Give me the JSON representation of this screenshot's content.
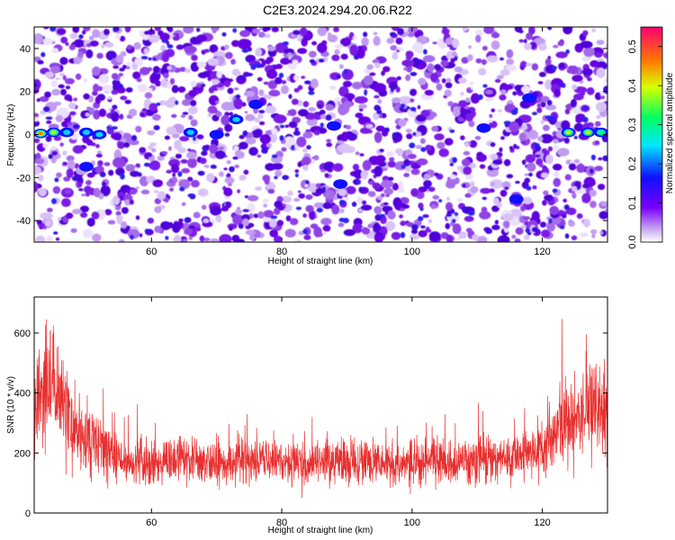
{
  "title": "C2E3.2024.294.20.06.R22",
  "chart_data": [
    {
      "type": "heatmap",
      "name": "spectrogram",
      "xlabel": "Height of straight line (km)",
      "ylabel": "Frequency (Hz)",
      "xlim": [
        42,
        130
      ],
      "ylim": [
        -50,
        50
      ],
      "xticks": [
        "60",
        "80",
        "100",
        "120"
      ],
      "xtick_values": [
        60,
        80,
        100,
        120
      ],
      "yticks": [
        "40",
        "20",
        "0",
        "-20",
        "-40"
      ],
      "ytick_values": [
        40,
        20,
        0,
        -20,
        -40
      ],
      "colorbar": {
        "label": "Normalized spectral amplitude",
        "range": [
          0,
          0.55
        ],
        "ticks": [
          "0.0",
          "0.1",
          "0.2",
          "0.3",
          "0.4",
          "0.5"
        ],
        "tick_values": [
          0.0,
          0.1,
          0.2,
          0.3,
          0.4,
          0.5
        ]
      },
      "peaks": [
        {
          "x": 43,
          "y": 0.5,
          "value": 0.5
        },
        {
          "x": 45,
          "y": 1,
          "value": 0.45
        },
        {
          "x": 47,
          "y": 1,
          "value": 0.25
        },
        {
          "x": 50,
          "y": 1,
          "value": 0.22
        },
        {
          "x": 52,
          "y": 0,
          "value": 0.2
        },
        {
          "x": 50,
          "y": -15,
          "value": 0.15
        },
        {
          "x": 66,
          "y": 1,
          "value": 0.22
        },
        {
          "x": 70,
          "y": 0,
          "value": 0.18
        },
        {
          "x": 73,
          "y": 7,
          "value": 0.2
        },
        {
          "x": 76,
          "y": 14,
          "value": 0.15
        },
        {
          "x": 88,
          "y": 4,
          "value": 0.15
        },
        {
          "x": 89,
          "y": -23,
          "value": 0.15
        },
        {
          "x": 111,
          "y": 3,
          "value": 0.15
        },
        {
          "x": 116,
          "y": -30,
          "value": 0.15
        },
        {
          "x": 118,
          "y": 17,
          "value": 0.15
        },
        {
          "x": 124,
          "y": 1,
          "value": 0.45
        },
        {
          "x": 127,
          "y": 1,
          "value": 0.42
        },
        {
          "x": 129,
          "y": 1,
          "value": 0.3
        }
      ]
    },
    {
      "type": "line",
      "name": "snr",
      "xlabel": "Height of straight line (km)",
      "ylabel": "SNR (10 * v/v)",
      "xlim": [
        42,
        130
      ],
      "ylim": [
        0,
        720
      ],
      "xticks": [
        "60",
        "80",
        "100",
        "120"
      ],
      "xtick_values": [
        60,
        80,
        100,
        120
      ],
      "yticks": [
        "600",
        "400",
        "200",
        "0"
      ],
      "ytick_values": [
        600,
        400,
        200,
        0
      ],
      "color": "#e83030",
      "envelope": [
        {
          "x": 42,
          "mean": 330,
          "spread": 200
        },
        {
          "x": 44,
          "mean": 420,
          "spread": 260
        },
        {
          "x": 46,
          "mean": 370,
          "spread": 230
        },
        {
          "x": 48,
          "mean": 290,
          "spread": 190
        },
        {
          "x": 50,
          "mean": 250,
          "spread": 160
        },
        {
          "x": 53,
          "mean": 200,
          "spread": 130
        },
        {
          "x": 56,
          "mean": 175,
          "spread": 110
        },
        {
          "x": 60,
          "mean": 170,
          "spread": 100
        },
        {
          "x": 70,
          "mean": 175,
          "spread": 100
        },
        {
          "x": 80,
          "mean": 170,
          "spread": 100
        },
        {
          "x": 90,
          "mean": 170,
          "spread": 100
        },
        {
          "x": 100,
          "mean": 165,
          "spread": 100
        },
        {
          "x": 110,
          "mean": 170,
          "spread": 100
        },
        {
          "x": 116,
          "mean": 190,
          "spread": 110
        },
        {
          "x": 120,
          "mean": 230,
          "spread": 140
        },
        {
          "x": 124,
          "mean": 300,
          "spread": 180
        },
        {
          "x": 127,
          "mean": 350,
          "spread": 200
        },
        {
          "x": 130,
          "mean": 330,
          "spread": 200
        }
      ]
    }
  ]
}
